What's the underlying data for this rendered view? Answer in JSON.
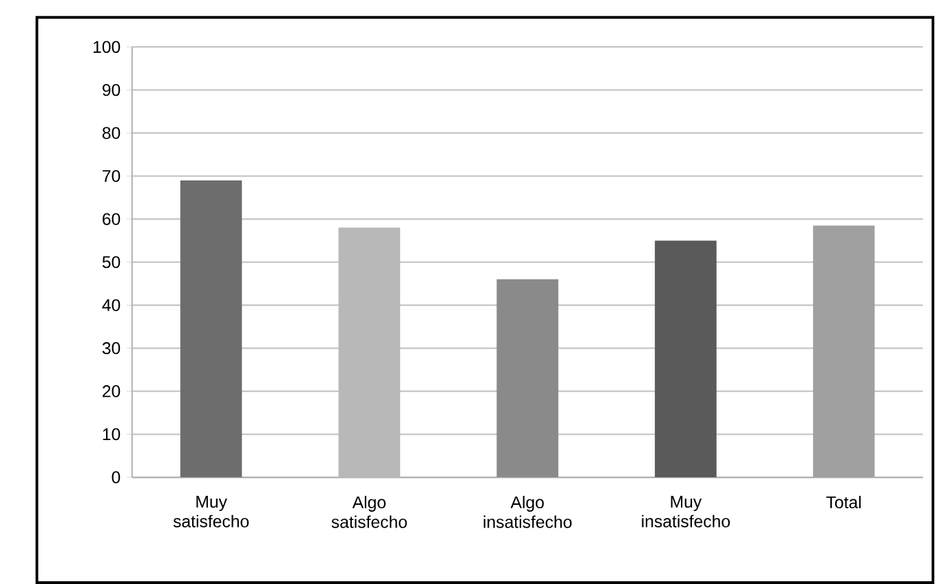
{
  "chart_data": {
    "type": "bar",
    "categories": [
      "Muy satisfecho",
      "Algo satisfecho",
      "Algo insatisfecho",
      "Muy insatisfecho",
      "Total"
    ],
    "values": [
      69,
      58,
      46,
      55,
      58.5
    ],
    "colors": [
      "#6d6d6d",
      "#b8b8b8",
      "#8a8a8a",
      "#5a5a5a",
      "#a0a0a0"
    ],
    "ylim": [
      0,
      100
    ],
    "yticks": [
      0,
      10,
      20,
      30,
      40,
      50,
      60,
      70,
      80,
      90,
      100
    ],
    "grid": "y"
  }
}
